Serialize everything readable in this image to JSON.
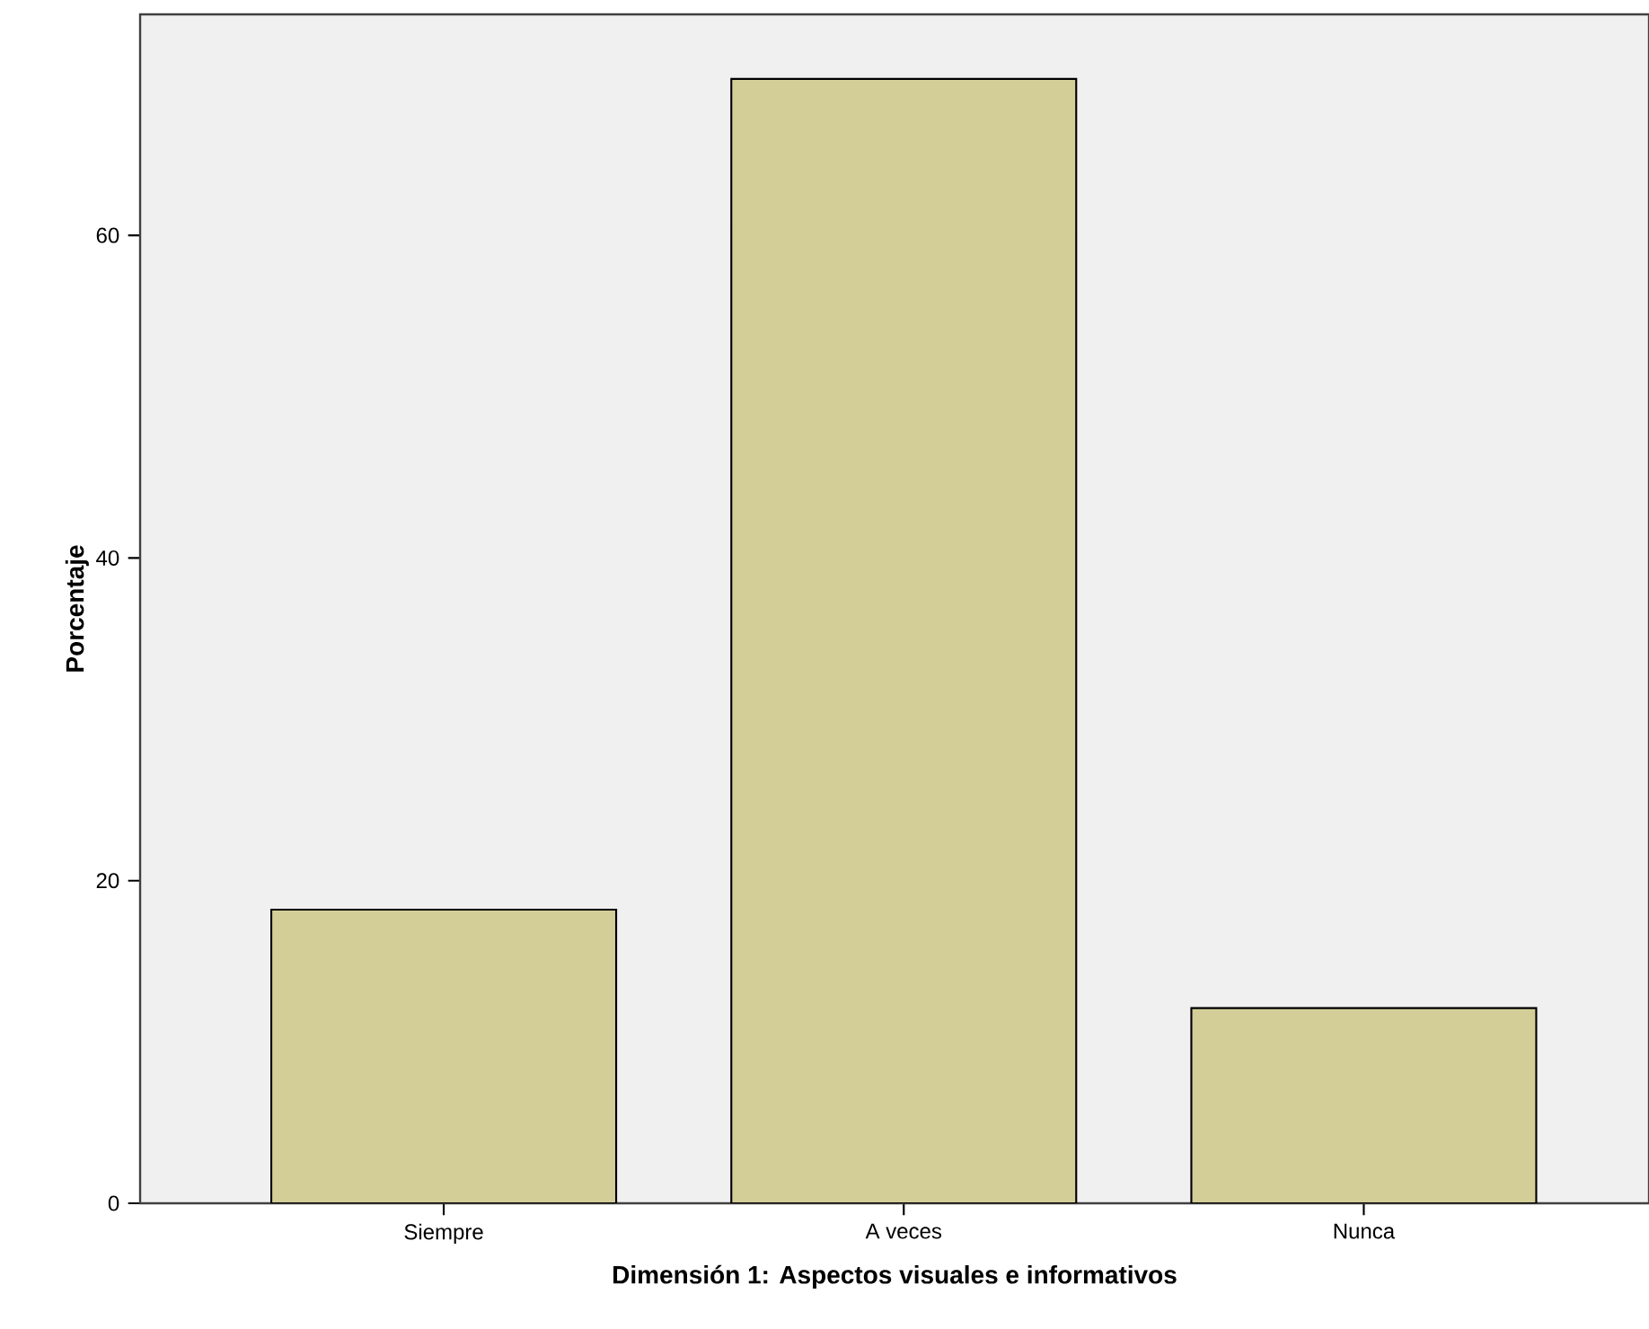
{
  "chart_data": {
    "type": "bar",
    "xlabel": "Dimensión 1: Aspectos visuales e informativos",
    "ylabel": "Porcentaje",
    "categories": [
      "Siempre",
      "A veces",
      "Nunca"
    ],
    "values": [
      18.2,
      69.7,
      12.1
    ],
    "color": "#d3cd98",
    "ylim": [
      0,
      73.7
    ],
    "yticks": [
      0,
      20,
      40,
      60
    ],
    "grid": false
  }
}
